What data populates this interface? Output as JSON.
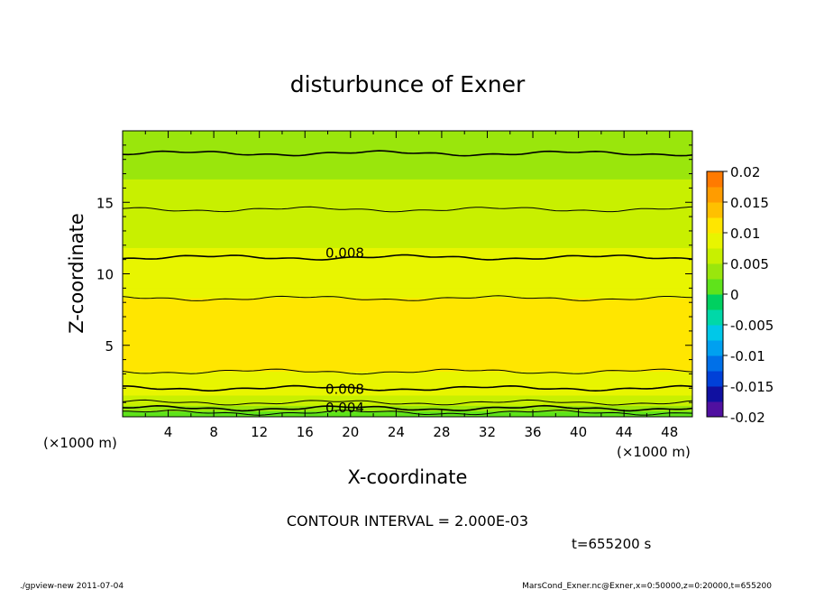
{
  "chart_data": {
    "type": "heatmap",
    "title": "disturbunce of Exner",
    "xlabel": "X-coordinate",
    "ylabel": "Z-coordinate",
    "x_unit": "(×1000 m)",
    "y_unit": "(×1000 m)",
    "xlim": [
      0,
      50
    ],
    "ylim": [
      0,
      20
    ],
    "x_ticks": [
      4,
      8,
      12,
      16,
      20,
      24,
      28,
      32,
      36,
      40,
      44,
      48
    ],
    "y_ticks": [
      5,
      10,
      15
    ],
    "contour_interval_text": "CONTOUR INTERVAL = 2.000E-03",
    "time_text": "t=655200 s",
    "colorbar": {
      "ticks": [
        "0.02",
        "0.015",
        "0.01",
        "0.005",
        "0",
        "-0.005",
        "-0.01",
        "-0.015",
        "-0.02"
      ],
      "range": [
        -0.02,
        0.02
      ]
    },
    "contour_labels": [
      {
        "text": "0.008",
        "x": 19.5,
        "z": 11.5
      },
      {
        "text": "0.008",
        "x": 19.5,
        "z": 2.0
      },
      {
        "text": "0.004",
        "x": 19.5,
        "z": 0.7
      }
    ],
    "profile_z": [
      0,
      0.3,
      0.6,
      1.0,
      1.5,
      2.0,
      2.5,
      3.0,
      3.5,
      4.0,
      5.0,
      6.0,
      7.0,
      8.0,
      9.0,
      10.0,
      11.0,
      12.0,
      13.0,
      14.0,
      15.0,
      16.0,
      17.0,
      18.0,
      19.0,
      20.0
    ],
    "profile_value": [
      0.001,
      0.002,
      0.004,
      0.006,
      0.0075,
      0.008,
      0.009,
      0.0098,
      0.0104,
      0.011,
      0.0116,
      0.0116,
      0.011,
      0.0102,
      0.0095,
      0.0088,
      0.0081,
      0.0074,
      0.0067,
      0.0062,
      0.0058,
      0.0054,
      0.0048,
      0.0043,
      0.0036,
      0.003
    ]
  },
  "footer": {
    "left": "./gpview-new   2011-07-04",
    "right": "MarsCond_Exner.nc@Exner,x=0:50000,z=0:20000,t=655200"
  }
}
